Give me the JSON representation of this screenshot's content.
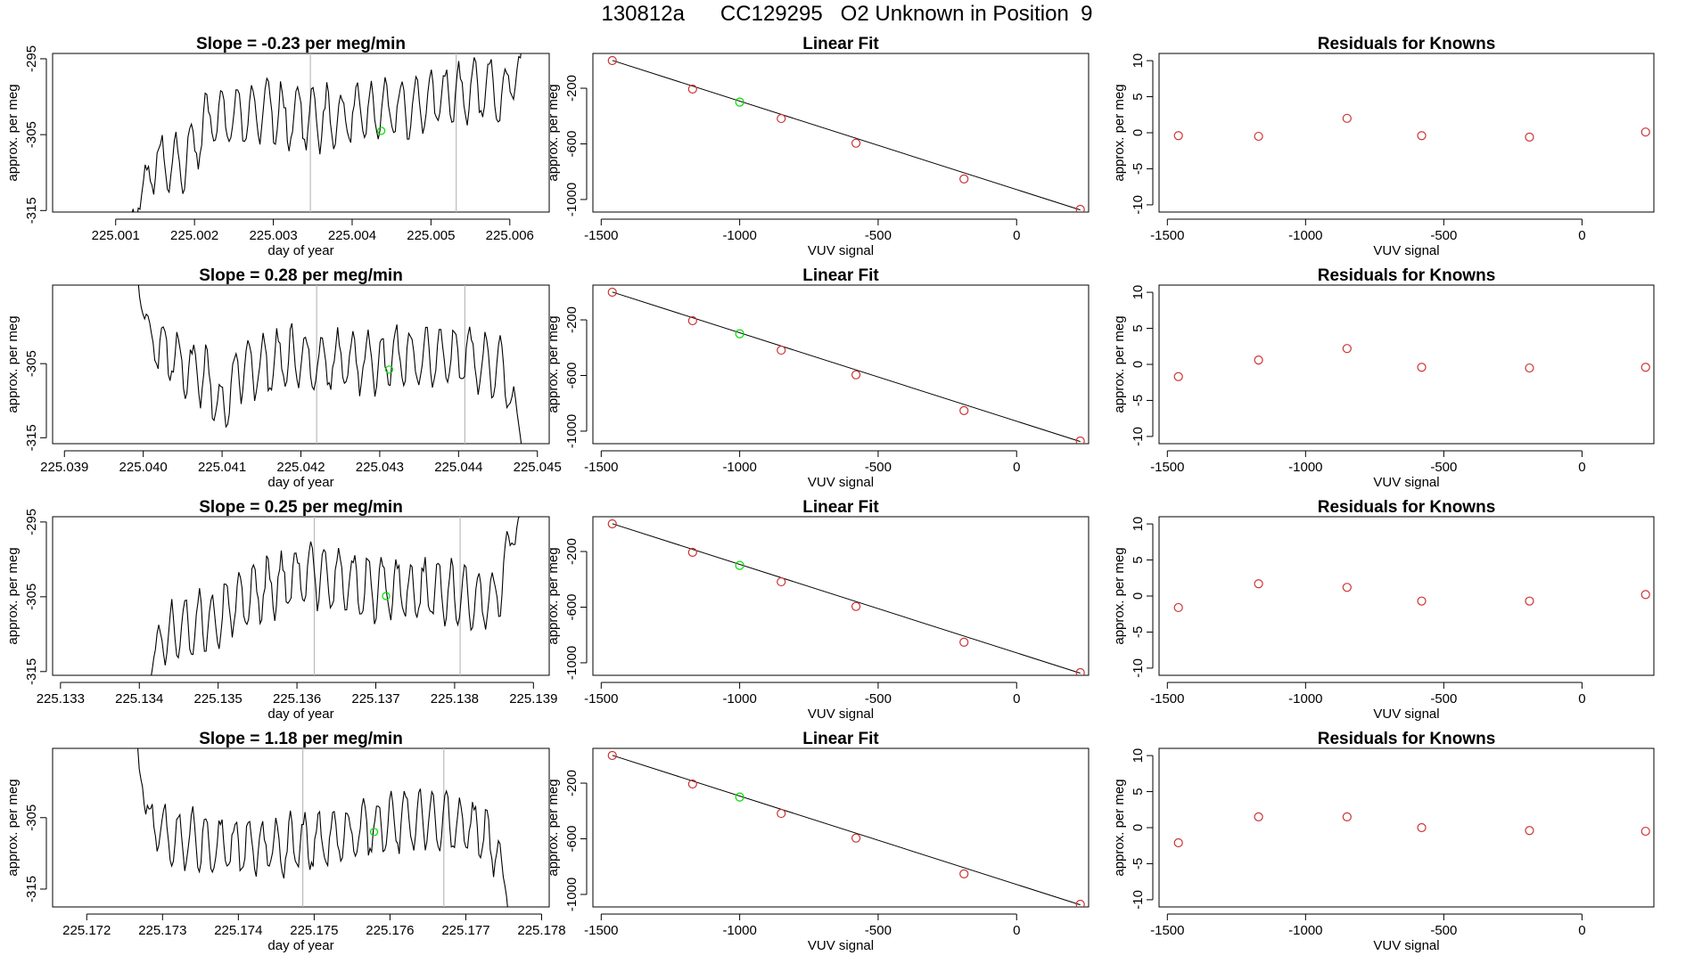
{
  "page": {
    "title": "130812a      CC129295   O2 Unknown in Position  9"
  },
  "colors": {
    "line": "#000000",
    "known": "#cd3333",
    "unknown": "#00dd00",
    "vline": "#bbbbbb"
  },
  "chart_data": [
    {
      "row": 1,
      "type": "line",
      "title": "Slope =  -0.23  per meg/min",
      "xlabel": "day of year",
      "ylabel": "approx. per meg",
      "xlim": [
        225.0002,
        225.0065
      ],
      "ylim": [
        -315.2,
        -294.3
      ],
      "x_ticks": [
        "225.001",
        "225.002",
        "225.003",
        "225.004",
        "225.005",
        "225.006"
      ],
      "x_tick_values": [
        225.001,
        225.002,
        225.003,
        225.004,
        225.005,
        225.006
      ],
      "y_ticks": [
        "-315",
        "-305",
        "-295"
      ],
      "y_tick_values": [
        -315,
        -305,
        -295
      ],
      "x_start": 225.0012,
      "x_end": 225.0062,
      "seed": 11,
      "anchors": [
        [
          0,
          -316
        ],
        [
          0.02,
          -314
        ],
        [
          0.05,
          -309
        ],
        [
          0.12,
          -309
        ],
        [
          0.2,
          -303
        ],
        [
          0.35,
          -302
        ],
        [
          0.5,
          -303
        ],
        [
          0.65,
          -302
        ],
        [
          0.8,
          -300
        ],
        [
          0.9,
          -299
        ],
        [
          0.95,
          -300
        ],
        [
          0.985,
          -296
        ],
        [
          1.0,
          -292
        ]
      ],
      "vlines": [
        225.00347,
        225.00532
      ],
      "marker": {
        "x": 225.00437,
        "y": -304.5
      }
    },
    {
      "row": 1,
      "type": "scatter",
      "title": "Linear Fit",
      "xlabel": "VUV signal",
      "ylabel": "approx. per meg",
      "xlim": [
        -1530,
        260
      ],
      "ylim": [
        -1090,
        50
      ],
      "x_ticks": [
        "-1500",
        "-1000",
        "-500",
        "0"
      ],
      "x_tick_values": [
        -1500,
        -1000,
        -500,
        0
      ],
      "y_ticks": [
        "-1000",
        "-600",
        "-200"
      ],
      "y_tick_values": [
        -1000,
        -600,
        -200
      ],
      "known_x": [
        -1460,
        -1170,
        -850,
        -580,
        -190,
        230
      ],
      "known_y": [
        -1,
        -206,
        -418,
        -595,
        -852,
        -1071
      ],
      "unknown_x": -1000,
      "unknown_y": -300,
      "fit": {
        "x0": -1460,
        "y0": 0,
        "x1": 230,
        "y1": -1075
      }
    },
    {
      "row": 1,
      "type": "scatter",
      "title": "Residuals for Knowns",
      "xlabel": "VUV signal",
      "ylabel": "approx. per meg",
      "xlim": [
        -1530,
        260
      ],
      "ylim": [
        -11,
        11
      ],
      "x_ticks": [
        "-1500",
        "-1000",
        "-500",
        "0"
      ],
      "x_tick_values": [
        -1500,
        -1000,
        -500,
        0
      ],
      "y_ticks": [
        "-10",
        "-5",
        "0",
        "5",
        "10"
      ],
      "y_tick_values": [
        -10,
        -5,
        0,
        5,
        10
      ],
      "known_x": [
        -1460,
        -1170,
        -850,
        -580,
        -190,
        230
      ],
      "known_y": [
        -0.4,
        -0.5,
        2.0,
        -0.4,
        -0.6,
        0.1
      ]
    },
    {
      "row": 2,
      "type": "line",
      "title": "Slope =  0.28  per meg/min",
      "xlabel": "day of year",
      "ylabel": "approx. per meg",
      "xlim": [
        225.03885,
        225.04515
      ],
      "ylim": [
        -315.8,
        -294.4
      ],
      "x_ticks": [
        "225.039",
        "225.040",
        "225.041",
        "225.042",
        "225.043",
        "225.044",
        "225.045"
      ],
      "x_tick_values": [
        225.039,
        225.04,
        225.041,
        225.042,
        225.043,
        225.044,
        225.045
      ],
      "y_ticks": [
        "-315",
        "-305"
      ],
      "y_tick_values": [
        -315,
        -305
      ],
      "x_start": 225.03991,
      "x_end": 225.04485,
      "seed": 23,
      "anchors": [
        [
          0,
          -293
        ],
        [
          0.04,
          -302
        ],
        [
          0.1,
          -304
        ],
        [
          0.18,
          -307
        ],
        [
          0.22,
          -311
        ],
        [
          0.26,
          -306
        ],
        [
          0.4,
          -304
        ],
        [
          0.55,
          -305
        ],
        [
          0.7,
          -304
        ],
        [
          0.85,
          -304
        ],
        [
          0.95,
          -306
        ],
        [
          0.98,
          -313
        ],
        [
          1.0,
          -318
        ]
      ],
      "vlines": [
        225.0422,
        225.04408
      ],
      "marker": {
        "x": 225.04312,
        "y": -305.8
      }
    },
    {
      "row": 2,
      "type": "scatter",
      "title": "Linear Fit",
      "xlabel": "VUV signal",
      "ylabel": "approx. per meg",
      "xlim": [
        -1530,
        260
      ],
      "ylim": [
        -1090,
        50
      ],
      "x_ticks": [
        "-1500",
        "-1000",
        "-500",
        "0"
      ],
      "x_tick_values": [
        -1500,
        -1000,
        -500,
        0
      ],
      "y_ticks": [
        "-1000",
        "-600",
        "-200"
      ],
      "y_tick_values": [
        -1000,
        -600,
        -200
      ],
      "known_x": [
        -1460,
        -1170,
        -850,
        -580,
        -190,
        230
      ],
      "known_y": [
        -1,
        -206,
        -418,
        -595,
        -852,
        -1071
      ],
      "unknown_x": -1000,
      "unknown_y": -300,
      "fit": {
        "x0": -1460,
        "y0": 0,
        "x1": 230,
        "y1": -1075
      }
    },
    {
      "row": 2,
      "type": "scatter",
      "title": "Residuals for Knowns",
      "xlabel": "VUV signal",
      "ylabel": "approx. per meg",
      "xlim": [
        -1530,
        260
      ],
      "ylim": [
        -11,
        11
      ],
      "x_ticks": [
        "-1500",
        "-1000",
        "-500",
        "0"
      ],
      "x_tick_values": [
        -1500,
        -1000,
        -500,
        0
      ],
      "y_ticks": [
        "-10",
        "-5",
        "0",
        "5",
        "10"
      ],
      "y_tick_values": [
        -10,
        -5,
        0,
        5,
        10
      ],
      "known_x": [
        -1460,
        -1170,
        -850,
        -580,
        -190,
        230
      ],
      "known_y": [
        -1.7,
        0.6,
        2.2,
        -0.4,
        -0.5,
        -0.4
      ]
    },
    {
      "row": 3,
      "type": "line",
      "title": "Slope =  0.25  per meg/min",
      "xlabel": "day of year",
      "ylabel": "approx. per meg",
      "xlim": [
        225.1329,
        225.1392
      ],
      "ylim": [
        -315.5,
        -294.3
      ],
      "x_ticks": [
        "225.133",
        "225.134",
        "225.135",
        "225.136",
        "225.137",
        "225.138",
        "225.139"
      ],
      "x_tick_values": [
        225.133,
        225.134,
        225.135,
        225.136,
        225.137,
        225.138,
        225.139
      ],
      "y_ticks": [
        "-315",
        "-305",
        "-295"
      ],
      "y_tick_values": [
        -315,
        -305,
        -295
      ],
      "x_start": 225.13408,
      "x_end": 225.13885,
      "seed": 37,
      "anchors": [
        [
          0,
          -318
        ],
        [
          0.03,
          -311
        ],
        [
          0.08,
          -309
        ],
        [
          0.18,
          -308
        ],
        [
          0.3,
          -304
        ],
        [
          0.45,
          -302
        ],
        [
          0.6,
          -304
        ],
        [
          0.75,
          -304
        ],
        [
          0.85,
          -305
        ],
        [
          0.92,
          -306
        ],
        [
          0.95,
          -303
        ],
        [
          0.98,
          -296
        ],
        [
          1.0,
          -293
        ]
      ],
      "vlines": [
        225.13622,
        225.13807
      ],
      "marker": {
        "x": 225.13713,
        "y": -304.9
      }
    },
    {
      "row": 3,
      "type": "scatter",
      "title": "Linear Fit",
      "xlabel": "VUV signal",
      "ylabel": "approx. per meg",
      "xlim": [
        -1530,
        260
      ],
      "ylim": [
        -1090,
        50
      ],
      "x_ticks": [
        "-1500",
        "-1000",
        "-500",
        "0"
      ],
      "x_tick_values": [
        -1500,
        -1000,
        -500,
        0
      ],
      "y_ticks": [
        "-1000",
        "-600",
        "-200"
      ],
      "y_tick_values": [
        -1000,
        -600,
        -200
      ],
      "known_x": [
        -1460,
        -1170,
        -850,
        -580,
        -190,
        230
      ],
      "known_y": [
        -1,
        -206,
        -418,
        -595,
        -852,
        -1071
      ],
      "unknown_x": -1000,
      "unknown_y": -300,
      "fit": {
        "x0": -1460,
        "y0": 0,
        "x1": 230,
        "y1": -1075
      }
    },
    {
      "row": 3,
      "type": "scatter",
      "title": "Residuals for Knowns",
      "xlabel": "VUV signal",
      "ylabel": "approx. per meg",
      "xlim": [
        -1530,
        260
      ],
      "ylim": [
        -11,
        11
      ],
      "x_ticks": [
        "-1500",
        "-1000",
        "-500",
        "0"
      ],
      "x_tick_values": [
        -1500,
        -1000,
        -500,
        0
      ],
      "y_ticks": [
        "-10",
        "-5",
        "0",
        "5",
        "10"
      ],
      "y_tick_values": [
        -10,
        -5,
        0,
        5,
        10
      ],
      "known_x": [
        -1460,
        -1170,
        -850,
        -580,
        -190,
        230
      ],
      "known_y": [
        -1.6,
        1.7,
        1.2,
        -0.7,
        -0.7,
        0.2
      ]
    },
    {
      "row": 4,
      "type": "line",
      "title": "Slope =  1.18  per meg/min",
      "xlabel": "day of year",
      "ylabel": "approx. per meg",
      "xlim": [
        225.17155,
        225.1781
      ],
      "ylim": [
        -317.5,
        -295.3
      ],
      "x_ticks": [
        "225.172",
        "225.173",
        "225.174",
        "225.175",
        "225.176",
        "225.177",
        "225.178"
      ],
      "x_tick_values": [
        225.172,
        225.173,
        225.174,
        225.175,
        225.176,
        225.177,
        225.178
      ],
      "y_ticks": [
        "-315",
        "-305"
      ],
      "y_tick_values": [
        -315,
        -305
      ],
      "x_start": 225.17265,
      "x_end": 225.17758,
      "seed": 53,
      "anchors": [
        [
          0,
          -294
        ],
        [
          0.03,
          -305
        ],
        [
          0.12,
          -308
        ],
        [
          0.25,
          -309
        ],
        [
          0.4,
          -309
        ],
        [
          0.55,
          -308
        ],
        [
          0.65,
          -306
        ],
        [
          0.75,
          -305
        ],
        [
          0.85,
          -306
        ],
        [
          0.93,
          -307
        ],
        [
          0.97,
          -310
        ],
        [
          1.0,
          -318
        ]
      ],
      "vlines": [
        225.17485,
        225.17671
      ],
      "marker": {
        "x": 225.17579,
        "y": -307.0
      }
    },
    {
      "row": 4,
      "type": "scatter",
      "title": "Linear Fit",
      "xlabel": "VUV signal",
      "ylabel": "approx. per meg",
      "xlim": [
        -1530,
        260
      ],
      "ylim": [
        -1090,
        50
      ],
      "x_ticks": [
        "-1500",
        "-1000",
        "-500",
        "0"
      ],
      "x_tick_values": [
        -1500,
        -1000,
        -500,
        0
      ],
      "y_ticks": [
        "-1000",
        "-600",
        "-200"
      ],
      "y_tick_values": [
        -1000,
        -600,
        -200
      ],
      "known_x": [
        -1460,
        -1170,
        -850,
        -580,
        -190,
        230
      ],
      "known_y": [
        -1,
        -206,
        -418,
        -595,
        -852,
        -1071
      ],
      "unknown_x": -1000,
      "unknown_y": -300,
      "fit": {
        "x0": -1460,
        "y0": 0,
        "x1": 230,
        "y1": -1075
      }
    },
    {
      "row": 4,
      "type": "scatter",
      "title": "Residuals for Knowns",
      "xlabel": "VUV signal",
      "ylabel": "approx. per meg",
      "xlim": [
        -1530,
        260
      ],
      "ylim": [
        -11,
        11
      ],
      "x_ticks": [
        "-1500",
        "-1000",
        "-500",
        "0"
      ],
      "x_tick_values": [
        -1500,
        -1000,
        -500,
        0
      ],
      "y_ticks": [
        "-10",
        "-5",
        "0",
        "5",
        "10"
      ],
      "y_tick_values": [
        -10,
        -5,
        0,
        5,
        10
      ],
      "known_x": [
        -1460,
        -1170,
        -850,
        -580,
        -190,
        230
      ],
      "known_y": [
        -2.1,
        1.5,
        1.5,
        0.0,
        -0.4,
        -0.5
      ]
    }
  ]
}
